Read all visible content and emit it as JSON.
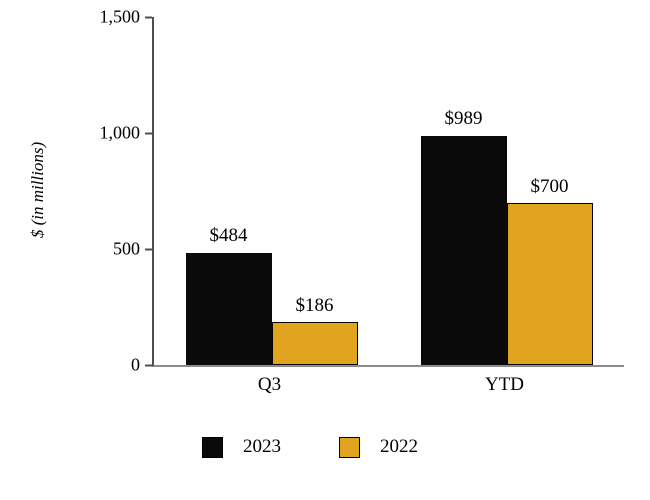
{
  "chart_data": {
    "type": "bar",
    "categories": [
      "Q3",
      "YTD"
    ],
    "series": [
      {
        "name": "2023",
        "color": "#0a0a0a",
        "values": [
          484,
          989
        ],
        "labels": [
          "$484",
          "$989"
        ]
      },
      {
        "name": "2022",
        "color": "#e2a41f",
        "stroke": "#000000",
        "values": [
          186,
          700
        ],
        "labels": [
          "$186",
          "$700"
        ]
      }
    ],
    "title": "",
    "xlabel": "",
    "ylabel": "$ (in millions)",
    "ylim": [
      0,
      1500
    ],
    "yticks": [
      0,
      500,
      1000,
      1500
    ],
    "ytick_labels": [
      "0",
      "500",
      "1,000",
      "1,500"
    ],
    "grid": false,
    "legend_position": "bottom"
  }
}
